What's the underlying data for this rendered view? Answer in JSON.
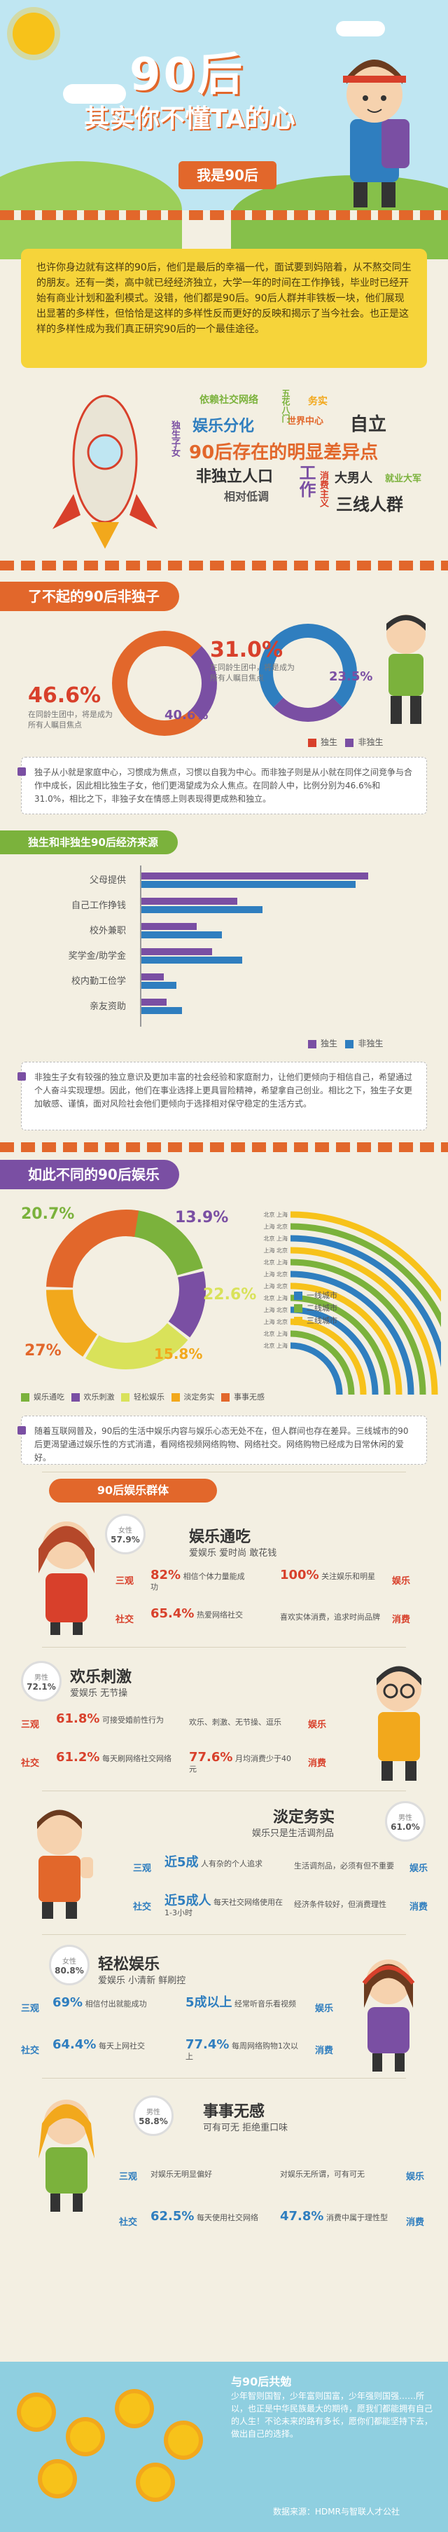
{
  "hero": {
    "title": "90后",
    "subtitle": "其实你不懂TA的心",
    "badge": "我是90后"
  },
  "intro": "也许你身边就有这样的90后，他们是最后的幸福一代，面试要到妈陪着，从不熬交同生的朋友。还有一类，高中就已经经济独立，大学一年的时间在工作挣钱，毕业时已经开始有商业计划和盈利模式。没错，他们都是90后。90后人群并非铁板一块，他们展现出显著的多样性，但恰恰是这样的多样性反而更好的反映和揭示了当今社会。也正是这样的多样性成为我们真正研究90后的一个最佳途径。",
  "keywords": [
    "依赖社交网络",
    "娱乐分化",
    "世界中心",
    "自立",
    "独生子女",
    "90后存在的明显差异点",
    "非独立人口",
    "工作",
    "大男人",
    "就业大军",
    "相对低调",
    "消费主义",
    "三线人群",
    "务实",
    "五花八门"
  ],
  "only_child": {
    "title": "了不起的90后非独子",
    "pct1": "46.6%",
    "pct1_desc": "在同龄生团中，将是成为所有人瞩目焦点",
    "pct2": "31.0%",
    "pct2_desc": "在同龄生团中，将是成为所有人瞩目焦点",
    "pct3": "40.6%",
    "pct4": "23.5%",
    "legend": [
      "独生",
      "非独生"
    ]
  },
  "note1": "独子从小就是家庭中心，习惯成为焦点，习惯以自我为中心。而非独子则是从小就在同伴之间竞争与合作中成长，因此相比独生子女，他们更渴望成为众人焦点。在同龄人中，比例分别为46.6%和31.0%，相比之下，非独子女在情感上则表现得更成熟和独立。",
  "income": {
    "title": "独生和非独生90后经济来源",
    "categories": [
      "父母提供",
      "自己工作挣钱",
      "校外兼职",
      "奖学金/助学金",
      "校内勤工俭学",
      "亲友资助"
    ],
    "series": [
      {
        "name": "独生",
        "color": "#7a4fa3",
        "values": [
          90,
          38,
          22,
          28,
          9,
          10
        ]
      },
      {
        "name": "非独生",
        "color": "#2f7ebf",
        "values": [
          85,
          48,
          32,
          40,
          14,
          16
        ]
      }
    ]
  },
  "note2": "非独生子女有较强的独立意识及更加丰富的社会经验和家庭耐力，让他们更倾向于相信自己，希望通过个人奋斗实现理想。因此，他们在事业选择上更具冒险精神，希望拿自己创业。相比之下，独生子女更加敏感、谨慎，面对风险社会他们更倾向于选择相对保守稳定的生活方式。",
  "entertainment": {
    "title": "如此不同的90后娱乐",
    "slices": [
      {
        "label": "娱乐通吃",
        "value": 20.7,
        "color": "#7bb23c"
      },
      {
        "label": "欢乐刺激",
        "value": 13.9,
        "color": "#7a4fa3"
      },
      {
        "label": "轻松娱乐",
        "value": 22.6,
        "color": "#d9e25a"
      },
      {
        "label": "淡定务实",
        "value": 15.8,
        "color": "#f2a81c"
      },
      {
        "label": "事事无感",
        "value": 27.0,
        "color": "#e2672b"
      }
    ],
    "city_labels": [
      "一线城市",
      "二线城市",
      "三线城市"
    ],
    "city_colors": [
      "#2f7ebf",
      "#7bb23c",
      "#f7c21a"
    ],
    "rows": [
      "北京 上海",
      "北京 上海",
      "上海 北京",
      "上海 北京",
      "北京 上海",
      "上海 北京",
      "上海 北京",
      "北京 上海",
      "上海 北京",
      "北京 上海",
      "上海 北京",
      "北京 上海"
    ]
  },
  "note3": "随着互联网普及，90后的生活中娱乐内容与娱乐心态无处不在，但人群间也存在差异。三线城市的90后更渴望通过娱乐性的方式消遣，看网络视频网络购物、网络社交。网络购物已经成为日常休闲的爱好。",
  "groups": {
    "title": "90后娱乐群体",
    "list": [
      {
        "name": "娱乐通吃",
        "desc": "爱娱乐 爱时尚 敢花钱",
        "share": "57.9%",
        "share_label": "女性",
        "r1_label": "三观",
        "r1_pct": "82%",
        "r1_text": "相信个体力量能成功",
        "r2_pct": "100%",
        "r2_text": "关注娱乐和明星",
        "r3_label": "社交",
        "r3_pct": "65.4%",
        "r3_text": "热爱网络社交",
        "r4_text": "喜欢实体消费，追求时尚品牌",
        "tag_a": "娱乐",
        "tag_b": "消费"
      },
      {
        "name": "欢乐刺激",
        "desc": "爱娱乐 无节操",
        "share": "72.1%",
        "share_label": "男性",
        "r1_label": "三观",
        "r1_pct": "61.8%",
        "r1_text": "可接受婚前性行为",
        "r2_pct": "",
        "r2_text": "欢乐、刺激、无节操、逗乐",
        "r3_label": "社交",
        "r3_pct": "61.2%",
        "r3_text": "每天刷网络社交网络",
        "r4_pct": "77.6%",
        "r4_text": "月均消费少于40元",
        "tag_a": "娱乐",
        "tag_b": "消费"
      },
      {
        "name": "淡定务实",
        "desc": "娱乐只是生活调剂品",
        "share": "61.0%",
        "share_label": "男性",
        "r1_label": "三观",
        "r1_pct": "近5成",
        "r1_text": "人有杂的个人追求",
        "r2_pct": "",
        "r2_text": "生活调剂品，必须有但不重要",
        "r3_label": "社交",
        "r3_pct": "近5成人",
        "r3_text": "每天社交网络使用在1-3小时",
        "r4_pct": "",
        "r4_text": "经济条件较好，但消费理性",
        "tag_a": "娱乐",
        "tag_b": "消费"
      },
      {
        "name": "轻松娱乐",
        "desc": "爱娱乐 小清新 鲜刷控",
        "share": "80.8%",
        "share_label": "女性",
        "r1_label": "三观",
        "r1_pct": "69%",
        "r1_text": "相信付出就能成功",
        "r2_pct": "5成以上",
        "r2_text": "经常听音乐看视频",
        "r3_label": "社交",
        "r3_pct": "64.4%",
        "r3_text": "每天上网社交",
        "r4_pct": "77.4%",
        "r4_text": "每周网络购物1次以上",
        "tag_a": "娱乐",
        "tag_b": "消费"
      },
      {
        "name": "事事无感",
        "desc": "可有可无 拒绝重口味",
        "share": "58.8%",
        "share_label": "男性",
        "r1_label": "三观",
        "r1_pct": "",
        "r1_text": "对娱乐无明显偏好",
        "r2_pct": "",
        "r2_text": "对娱乐无所谓，可有可无",
        "r3_label": "社交",
        "r3_pct": "62.5%",
        "r3_text": "每天使用社交网络",
        "r4_pct": "47.8%",
        "r4_text": "消费中属于理性型",
        "tag_a": "娱乐",
        "tag_b": "消费"
      }
    ]
  },
  "footer": {
    "title": "与90后共勉",
    "text": "少年智则国智，少年富则国富，少年强则国强……所以，也正是中华民族最大的期待，愿我们都能拥有自己的人生！不论未来的路有多长，愿你们都能坚持下去，做出自己的选择。",
    "source": "数据来源：HDMR与智联人才公社"
  },
  "colors": {
    "orange": "#e2672b",
    "green": "#7bb23c",
    "purple": "#7a4fa3",
    "blue": "#2f7ebf",
    "yellow": "#f7c21a"
  }
}
